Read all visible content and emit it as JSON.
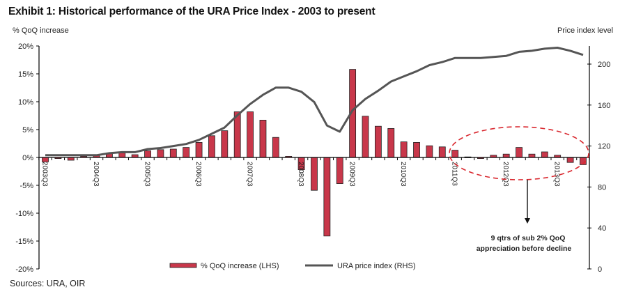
{
  "header": {
    "title": "Exhibit 1: Historical performance of the URA Price Index - 2003 to present",
    "lhs_axis_title": "% QoQ increase",
    "rhs_axis_title": "Price index  level"
  },
  "footer": {
    "sources": "Sources: URA, OIR"
  },
  "colors": {
    "bar": "#c8374a",
    "bar_outline": "#222222",
    "line": "#555555",
    "ellipse": "#d9272e"
  },
  "chart_data": {
    "type": "bar+line",
    "title": "Exhibit 1: Historical performance of the URA Price Index - 2003 to present",
    "xlabel": "",
    "ylabel": "% QoQ increase",
    "y2label": "Price index  level",
    "ylim": [
      -20,
      20
    ],
    "y_ticks": [
      -20,
      -15,
      -10,
      -5,
      0,
      5,
      10,
      15,
      20
    ],
    "y_tick_labels": [
      "-20%",
      "-15%",
      "-10%",
      "-5%",
      "0%",
      "5%",
      "10%",
      "15%",
      "20%"
    ],
    "y2lim": [
      0,
      220
    ],
    "y2_ticks": [
      0,
      40,
      80,
      120,
      160,
      200
    ],
    "y2_tick_labels": [
      "0",
      "40",
      "80",
      "120",
      "160",
      "200"
    ],
    "x": [
      "2003Q3",
      "2003Q4",
      "2004Q1",
      "2004Q2",
      "2004Q3",
      "2004Q4",
      "2005Q1",
      "2005Q2",
      "2005Q3",
      "2005Q4",
      "2006Q1",
      "2006Q2",
      "2006Q3",
      "2006Q4",
      "2007Q1",
      "2007Q2",
      "2007Q3",
      "2007Q4",
      "2008Q1",
      "2008Q2",
      "2008Q3",
      "2008Q4",
      "2009Q1",
      "2009Q2",
      "2009Q3",
      "2009Q4",
      "2010Q1",
      "2010Q2",
      "2010Q3",
      "2010Q4",
      "2011Q1",
      "2011Q2",
      "2011Q3",
      "2011Q4",
      "2012Q1",
      "2012Q2",
      "2012Q3",
      "2012Q4",
      "2013Q1",
      "2013Q2",
      "2013Q3",
      "2013Q4",
      "2014Q1"
    ],
    "x_tick_labels": [
      "2003Q3",
      "2004Q3",
      "2005Q3",
      "2006Q3",
      "2007Q3",
      "2008Q3",
      "2009Q3",
      "2010Q3",
      "2011Q3",
      "2012Q3",
      "2013Q3"
    ],
    "series": [
      {
        "name": "% QoQ increase (LHS)",
        "type": "bar",
        "axis": "left",
        "values": [
          -0.8,
          -0.2,
          -0.5,
          0.2,
          0.4,
          0.8,
          0.8,
          0.5,
          1.2,
          1.4,
          1.5,
          1.8,
          2.7,
          3.9,
          4.8,
          8.2,
          8.2,
          6.7,
          3.6,
          0.2,
          -2.2,
          -5.9,
          -14.1,
          -4.7,
          15.8,
          7.4,
          5.6,
          5.2,
          2.8,
          2.7,
          2.1,
          1.9,
          1.3,
          0.1,
          -0.2,
          0.4,
          0.6,
          1.8,
          0.6,
          1.0,
          0.4,
          -0.9,
          -1.3
        ]
      },
      {
        "name": "URA price index (RHS)",
        "type": "line",
        "axis": "right",
        "values": [
          111,
          111,
          111,
          111,
          111,
          113,
          114,
          114,
          117,
          118,
          120,
          122,
          126,
          132,
          138,
          150,
          161,
          170,
          177,
          177,
          173,
          163,
          140,
          134,
          155,
          166,
          174,
          183,
          188,
          193,
          199,
          202,
          206,
          206,
          206,
          207,
          208,
          212,
          213,
          215,
          216,
          213,
          209
        ]
      }
    ],
    "legend": [
      "% QoQ increase (LHS)",
      "URA price index (RHS)"
    ],
    "legend_position": "bottom-center",
    "grid": false,
    "annotations": [
      {
        "text_line1": "9 qtrs of sub 2% QoQ",
        "text_line2": "appreciation  before decline",
        "type": "arrow-callout",
        "highlight": "dashed-ellipse around 2011Q3-2014Q1"
      }
    ]
  }
}
